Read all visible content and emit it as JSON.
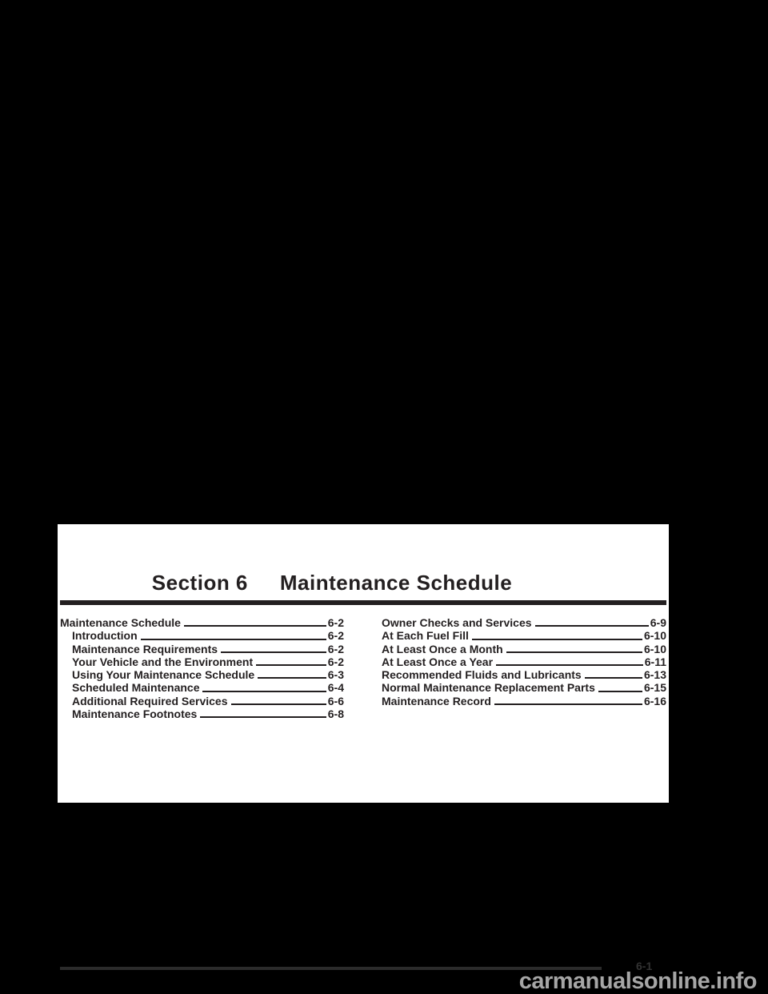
{
  "page": {
    "section_heading": {
      "section": "Section 6",
      "title": "Maintenance Schedule"
    },
    "toc": {
      "left_column": [
        {
          "label": "Maintenance Schedule",
          "page": "6-2",
          "indent": false
        },
        {
          "label": "Introduction",
          "page": "6-2",
          "indent": true
        },
        {
          "label": "Maintenance Requirements",
          "page": "6-2",
          "indent": true
        },
        {
          "label": "Your Vehicle and the Environment",
          "page": "6-2",
          "indent": true
        },
        {
          "label": "Using Your Maintenance Schedule",
          "page": "6-3",
          "indent": true
        },
        {
          "label": "Scheduled Maintenance",
          "page": "6-4",
          "indent": true
        },
        {
          "label": "Additional Required Services",
          "page": "6-6",
          "indent": true
        },
        {
          "label": "Maintenance Footnotes",
          "page": "6-8",
          "indent": true
        }
      ],
      "right_column": [
        {
          "label": "Owner Checks and Services",
          "page": "6-9",
          "indent": false
        },
        {
          "label": "At Each Fuel Fill",
          "page": "6-10",
          "indent": false
        },
        {
          "label": "At Least Once a Month",
          "page": "6-10",
          "indent": false
        },
        {
          "label": "At Least Once a Year",
          "page": "6-11",
          "indent": false
        },
        {
          "label": "Recommended Fluids and Lubricants",
          "page": "6-13",
          "indent": false
        },
        {
          "label": "Normal Maintenance Replacement Parts",
          "page": "6-15",
          "indent": false
        },
        {
          "label": "Maintenance Record",
          "page": "6-16",
          "indent": false
        }
      ]
    }
  },
  "footer": {
    "page_number": "6-1"
  },
  "watermark": {
    "text": "carmanualsonline.info"
  },
  "colors": {
    "canvas_bg": "#000000",
    "page_bg": "#ffffff",
    "text": "#231f20",
    "footer_line": "#2b2b2b",
    "footer_page_number": "#333333",
    "watermark": "#a6a6a6"
  }
}
